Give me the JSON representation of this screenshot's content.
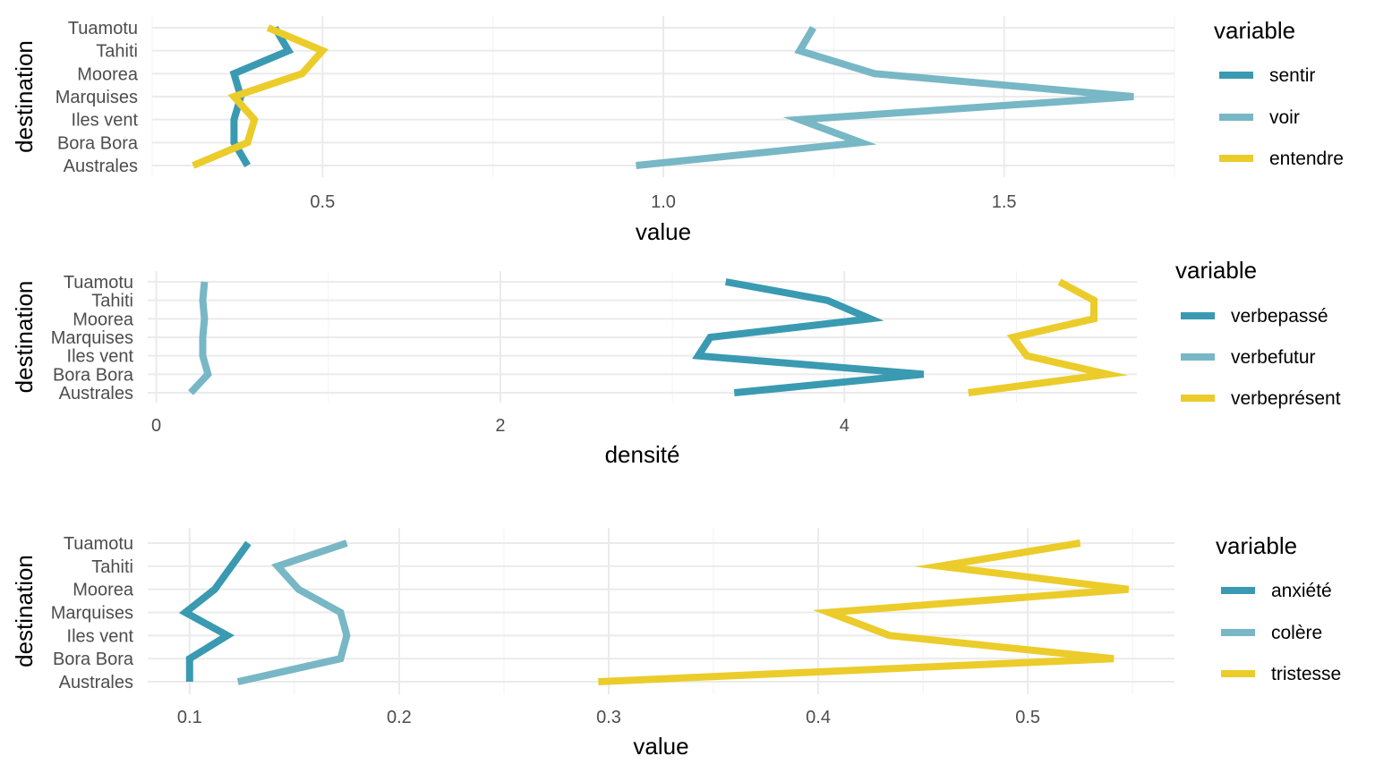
{
  "chart_data": [
    {
      "type": "line",
      "orientation": "horizontal",
      "categories": [
        "Australes",
        "Bora Bora",
        "Iles vent",
        "Marquises",
        "Moorea",
        "Tahiti",
        "Tuamotu"
      ],
      "xlabel": "value",
      "ylabel": "destination",
      "xlim": [
        0.25,
        1.75
      ],
      "xticks": [
        0.5,
        1.0,
        1.5
      ],
      "xtick_labels": [
        "0.5",
        "1.0",
        "1.5"
      ],
      "grid": true,
      "legend": {
        "title": "variable",
        "position": "right"
      },
      "series": [
        {
          "name": "sentir",
          "color": "#3a9ab2",
          "values": [
            0.39,
            0.37,
            0.37,
            0.38,
            0.37,
            0.45,
            0.43
          ]
        },
        {
          "name": "voir",
          "color": "#78b7c5",
          "values": [
            0.96,
            1.29,
            1.2,
            1.69,
            1.31,
            1.2,
            1.22
          ]
        },
        {
          "name": "entendre",
          "color": "#ebcc2a",
          "values": [
            0.31,
            0.39,
            0.4,
            0.37,
            0.47,
            0.5,
            0.42
          ]
        }
      ]
    },
    {
      "type": "line",
      "orientation": "horizontal",
      "categories": [
        "Australes",
        "Bora Bora",
        "Iles vent",
        "Marquises",
        "Moorea",
        "Tahiti",
        "Tuamotu"
      ],
      "xlabel": "densité",
      "ylabel": "destination",
      "xlim": [
        -0.05,
        5.7
      ],
      "xticks": [
        0,
        2,
        4
      ],
      "xtick_labels": [
        "0",
        "2",
        "4"
      ],
      "grid": true,
      "legend": {
        "title": "variable",
        "position": "right"
      },
      "series": [
        {
          "name": "verbepassé",
          "color": "#3a9ab2",
          "values": [
            3.36,
            4.46,
            3.15,
            3.22,
            4.15,
            3.9,
            3.31
          ]
        },
        {
          "name": "verbefutur",
          "color": "#78b7c5",
          "values": [
            0.2,
            0.3,
            0.27,
            0.27,
            0.28,
            0.27,
            0.28
          ]
        },
        {
          "name": "verbeprésent",
          "color": "#ebcc2a",
          "values": [
            4.72,
            5.53,
            5.06,
            4.98,
            5.45,
            5.45,
            5.25
          ]
        }
      ]
    },
    {
      "type": "line",
      "orientation": "horizontal",
      "categories": [
        "Australes",
        "Bora Bora",
        "Iles vent",
        "Marquises",
        "Moorea",
        "Tahiti",
        "Tuamotu"
      ],
      "xlabel": "value",
      "ylabel": "destination",
      "xlim": [
        0.08,
        0.57
      ],
      "xticks": [
        0.1,
        0.2,
        0.3,
        0.4,
        0.5
      ],
      "xtick_labels": [
        "0.1",
        "0.2",
        "0.3",
        "0.4",
        "0.5"
      ],
      "grid": true,
      "legend": {
        "title": "variable",
        "position": "right"
      },
      "series": [
        {
          "name": "anxiété",
          "color": "#3a9ab2",
          "values": [
            0.1,
            0.1,
            0.118,
            0.098,
            0.112,
            0.12,
            0.128
          ]
        },
        {
          "name": "colère",
          "color": "#78b7c5",
          "values": [
            0.123,
            0.172,
            0.175,
            0.172,
            0.152,
            0.142,
            0.175
          ]
        },
        {
          "name": "tristesse",
          "color": "#ebcc2a",
          "values": [
            0.295,
            0.541,
            0.434,
            0.405,
            0.548,
            0.458,
            0.525
          ]
        }
      ]
    }
  ]
}
